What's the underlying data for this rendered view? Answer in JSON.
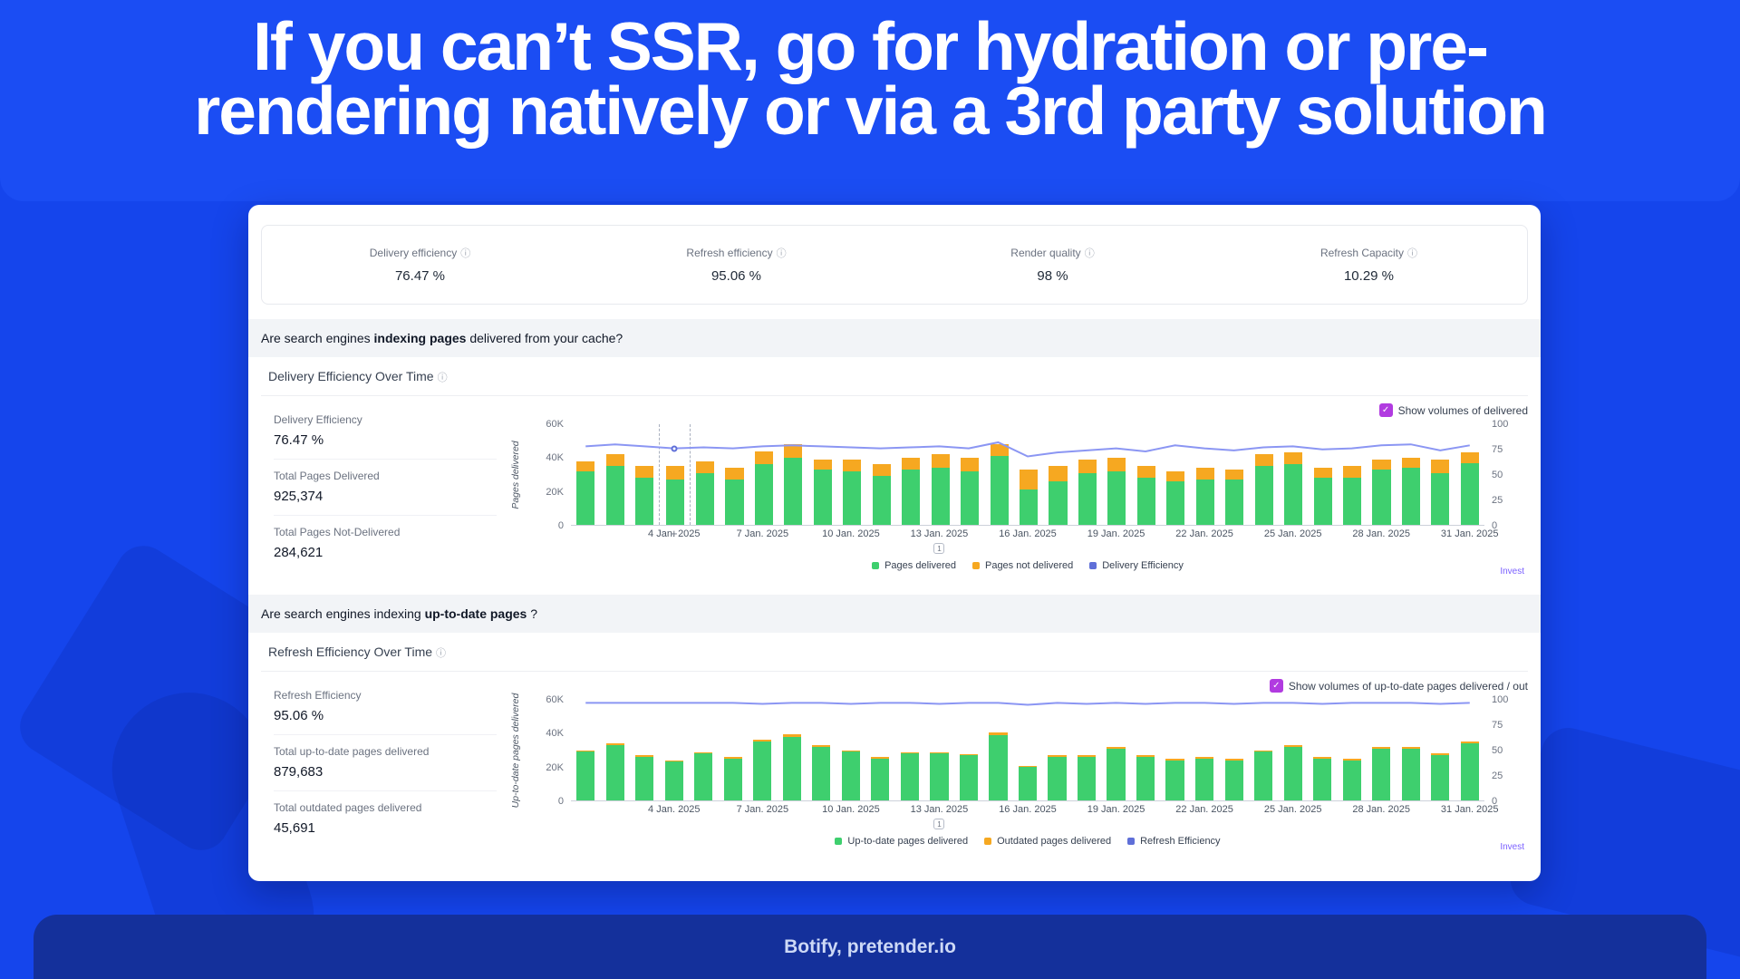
{
  "slide": {
    "title_line1": "If you can’t SSR, go for hydration or pre-",
    "title_line2": "rendering natively or via a 3rd party solution",
    "footer": "Botify, pretender.io"
  },
  "kpis": [
    {
      "label": "Delivery efficiency",
      "value": "76.47 %"
    },
    {
      "label": "Refresh efficiency",
      "value": "95.06 %"
    },
    {
      "label": "Render quality",
      "value": "98 %"
    },
    {
      "label": "Refresh Capacity",
      "value": "10.29 %"
    }
  ],
  "questions": [
    {
      "prefix": "Are search engines ",
      "bold": "indexing pages",
      "suffix": " delivered from your cache?"
    },
    {
      "prefix": "Are search engines indexing ",
      "bold": "up-to-date pages",
      "suffix": " ?"
    }
  ],
  "sections": [
    {
      "title": "Delivery Efficiency Over Time",
      "checkbox_label": "Show volumes of delivered",
      "checkbox_checked": true,
      "stats": [
        {
          "label": "Delivery Efficiency",
          "value": "76.47 %"
        },
        {
          "label": "Total Pages Delivered",
          "value": "925,374"
        },
        {
          "label": "Total Pages Not-Delivered",
          "value": "284,621"
        }
      ],
      "link_label": "Invest"
    },
    {
      "title": "Refresh Efficiency Over Time",
      "checkbox_label": "Show volumes of up-to-date pages delivered / out",
      "checkbox_checked": true,
      "stats": [
        {
          "label": "Refresh Efficiency",
          "value": "95.06 %"
        },
        {
          "label": "Total up-to-date pages delivered",
          "value": "879,683"
        },
        {
          "label": "Total outdated pages delivered",
          "value": "45,691"
        }
      ],
      "link_label": "Invest"
    }
  ],
  "colors": {
    "green": "#3ecf6e",
    "orange": "#f6a821",
    "line": "#8b96f3",
    "line_legend": "#5f6fd8",
    "checkbox": "#b13be0",
    "link": "#7b61ff"
  },
  "chart_data": [
    {
      "type": "bar",
      "title": "Delivery Efficiency Over Time",
      "ylabel": "Pages delivered",
      "y_left_ticks": [
        "60K",
        "40K",
        "20K",
        "0"
      ],
      "y_left_max": 60000,
      "y_right_ticks": [
        "100",
        "75",
        "50",
        "25",
        "0"
      ],
      "y_right_max": 100,
      "x_tick_labels": [
        "4 Jan. 2025",
        "7 Jan. 2025",
        "10 Jan. 2025",
        "13 Jan. 2025",
        "16 Jan. 2025",
        "19 Jan. 2025",
        "22 Jan. 2025",
        "25 Jan. 2025",
        "28 Jan. 2025",
        "31 Jan. 2025"
      ],
      "x_tick_indices": [
        3,
        6,
        9,
        12,
        15,
        18,
        21,
        24,
        27,
        30
      ],
      "series": [
        {
          "name": "Pages delivered",
          "color": "#3ecf6e",
          "values": [
            32000,
            35000,
            28000,
            27000,
            31000,
            27000,
            36000,
            40000,
            33000,
            32000,
            29000,
            33000,
            34000,
            32000,
            41000,
            21000,
            26000,
            31000,
            32000,
            28000,
            26000,
            27000,
            27000,
            35000,
            36000,
            28000,
            28000,
            33000,
            34000,
            31000,
            37000
          ]
        },
        {
          "name": "Pages not delivered",
          "color": "#f6a821",
          "values": [
            6000,
            7000,
            7000,
            8000,
            7000,
            7000,
            8000,
            8000,
            6000,
            7000,
            7000,
            7000,
            8000,
            8000,
            7000,
            12000,
            9000,
            8000,
            8000,
            7000,
            6000,
            7000,
            6000,
            7000,
            7000,
            6000,
            7000,
            6000,
            6000,
            8000,
            6000
          ]
        }
      ],
      "line": {
        "name": "Delivery Efficiency",
        "color": "#8b96f3",
        "legend_color": "#5f6fd8",
        "values": [
          78,
          80,
          78,
          76,
          77,
          76,
          78,
          79,
          78,
          77,
          76,
          77,
          78,
          76,
          82,
          68,
          72,
          74,
          76,
          73,
          79,
          76,
          74,
          77,
          78,
          75,
          76,
          79,
          80,
          74,
          79
        ]
      },
      "hover_index": 3,
      "annotation": {
        "index": 12,
        "label": "1"
      }
    },
    {
      "type": "bar",
      "title": "Refresh Efficiency Over Time",
      "ylabel": "Up-to-date pages delivered",
      "y_left_ticks": [
        "60K",
        "40K",
        "20K",
        "0"
      ],
      "y_left_max": 60000,
      "y_right_ticks": [
        "100",
        "75",
        "50",
        "25",
        "0"
      ],
      "y_right_max": 100,
      "x_tick_labels": [
        "4 Jan. 2025",
        "7 Jan. 2025",
        "10 Jan. 2025",
        "13 Jan. 2025",
        "16 Jan. 2025",
        "19 Jan. 2025",
        "22 Jan. 2025",
        "25 Jan. 2025",
        "28 Jan. 2025",
        "31 Jan. 2025"
      ],
      "x_tick_indices": [
        3,
        6,
        9,
        12,
        15,
        18,
        21,
        24,
        27,
        30
      ],
      "series": [
        {
          "name": "Up-to-date pages delivered",
          "color": "#3ecf6e",
          "values": [
            29000,
            33000,
            26000,
            23000,
            28000,
            25000,
            35000,
            38000,
            32000,
            29000,
            25000,
            28000,
            28000,
            27000,
            39000,
            20000,
            26000,
            26000,
            31000,
            26000,
            24000,
            25000,
            24000,
            29000,
            32000,
            25000,
            24000,
            31000,
            31000,
            27000,
            34000
          ]
        },
        {
          "name": "Outdated pages delivered",
          "color": "#f6a821",
          "values": [
            1000,
            1000,
            800,
            700,
            900,
            800,
            1200,
            1500,
            1000,
            900,
            800,
            900,
            900,
            800,
            1500,
            700,
            800,
            800,
            1000,
            800,
            700,
            800,
            700,
            900,
            1200,
            800,
            700,
            1000,
            1000,
            900,
            1200
          ]
        }
      ],
      "line": {
        "name": "Refresh Efficiency",
        "color": "#8b96f3",
        "legend_color": "#5f6fd8",
        "values": [
          97,
          97,
          97,
          97,
          97,
          97,
          96,
          97,
          97,
          96,
          97,
          97,
          96,
          97,
          97,
          95,
          97,
          96,
          97,
          96,
          97,
          97,
          96,
          97,
          97,
          96,
          97,
          97,
          97,
          96,
          97
        ]
      },
      "annotation": {
        "index": 12,
        "label": "1"
      }
    }
  ]
}
